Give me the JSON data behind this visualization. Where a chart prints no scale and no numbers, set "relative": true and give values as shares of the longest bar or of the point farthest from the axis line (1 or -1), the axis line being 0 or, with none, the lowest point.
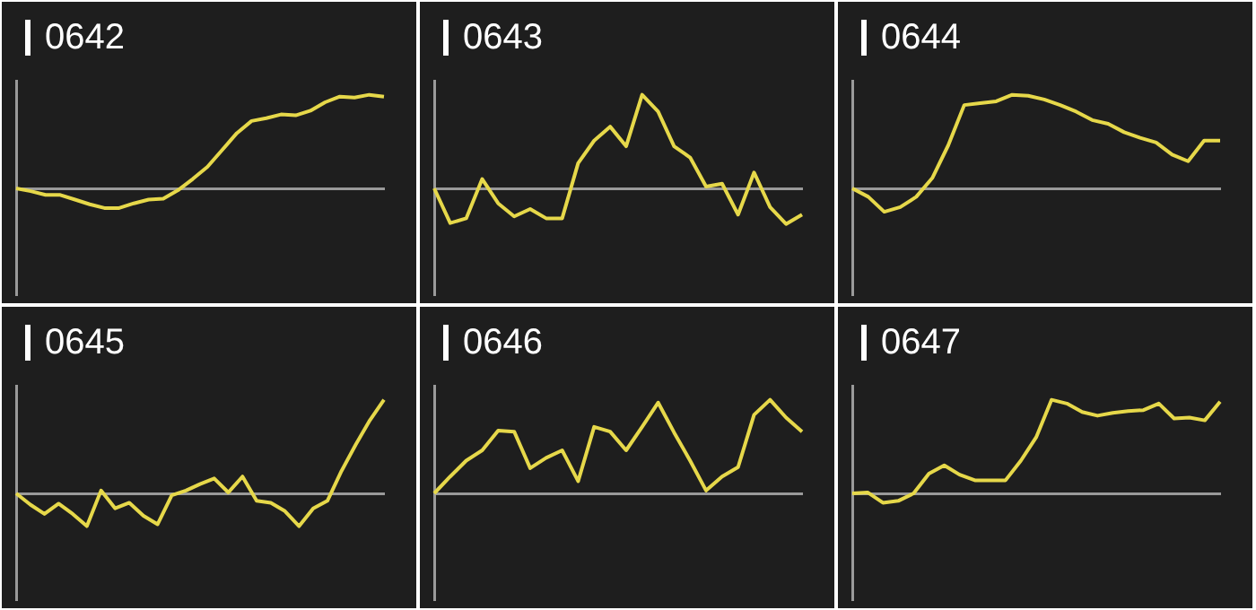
{
  "chart_data": [
    {
      "type": "line",
      "title": "0642",
      "relative": true,
      "categories": [
        null,
        null,
        null,
        null,
        null,
        null,
        null,
        null,
        null,
        null,
        null,
        null,
        null,
        null,
        null,
        null,
        null,
        null,
        null,
        null,
        null,
        null,
        null,
        null,
        null,
        null
      ],
      "series": [
        {
          "color": "#e6d84a",
          "values": [
            0,
            -0.03,
            -0.07,
            -0.07,
            -0.12,
            -0.17,
            -0.21,
            -0.21,
            -0.16,
            -0.12,
            -0.11,
            -0.02,
            0.1,
            0.23,
            0.41,
            0.59,
            0.72,
            0.75,
            0.79,
            0.78,
            0.83,
            0.92,
            0.98,
            0.97,
            1,
            0.98
          ]
        }
      ]
    },
    {
      "type": "line",
      "title": "0643",
      "relative": true,
      "categories": [
        null,
        null,
        null,
        null,
        null,
        null,
        null,
        null,
        null,
        null,
        null,
        null,
        null,
        null,
        null,
        null,
        null,
        null,
        null,
        null,
        null,
        null,
        null,
        null
      ],
      "series": [
        {
          "color": "#e6d84a",
          "values": [
            0,
            -0.37,
            -0.32,
            0.1,
            -0.16,
            -0.3,
            -0.22,
            -0.32,
            -0.32,
            0.27,
            0.51,
            0.66,
            0.45,
            1,
            0.82,
            0.45,
            0.33,
            0.02,
            0.05,
            -0.28,
            0.17,
            -0.2,
            -0.38,
            -0.28
          ]
        }
      ]
    },
    {
      "type": "line",
      "title": "0644",
      "relative": true,
      "categories": [
        null,
        null,
        null,
        null,
        null,
        null,
        null,
        null,
        null,
        null,
        null,
        null,
        null,
        null,
        null,
        null,
        null,
        null,
        null,
        null,
        null,
        null,
        null,
        null
      ],
      "series": [
        {
          "color": "#e6d84a",
          "values": [
            0,
            -0.09,
            -0.25,
            -0.2,
            -0.09,
            0.11,
            0.46,
            0.89,
            0.91,
            0.93,
            1,
            0.99,
            0.95,
            0.89,
            0.82,
            0.73,
            0.69,
            0.6,
            0.54,
            0.49,
            0.36,
            0.29,
            0.51,
            0.51
          ]
        }
      ]
    },
    {
      "type": "line",
      "title": "0645",
      "relative": true,
      "categories": [
        null,
        null,
        null,
        null,
        null,
        null,
        null,
        null,
        null,
        null,
        null,
        null,
        null,
        null,
        null,
        null,
        null,
        null,
        null,
        null,
        null,
        null,
        null,
        null,
        null,
        null,
        null
      ],
      "series": [
        {
          "color": "#e6d84a",
          "values": [
            0,
            -0.12,
            -0.22,
            -0.11,
            -0.22,
            -0.35,
            0.03,
            -0.16,
            -0.1,
            -0.24,
            -0.33,
            -0.02,
            0.03,
            0.1,
            0.16,
            0.01,
            0.18,
            -0.08,
            -0.1,
            -0.19,
            -0.35,
            -0.16,
            -0.08,
            0.24,
            0.52,
            0.78,
            1
          ]
        }
      ]
    },
    {
      "type": "line",
      "title": "0646",
      "relative": true,
      "categories": [
        null,
        null,
        null,
        null,
        null,
        null,
        null,
        null,
        null,
        null,
        null,
        null,
        null,
        null,
        null,
        null,
        null,
        null,
        null,
        null,
        null,
        null,
        null,
        null
      ],
      "series": [
        {
          "color": "#e6d84a",
          "values": [
            0,
            0.18,
            0.35,
            0.46,
            0.67,
            0.66,
            0.27,
            0.38,
            0.46,
            0.13,
            0.71,
            0.66,
            0.46,
            0.71,
            0.97,
            0.65,
            0.35,
            0.03,
            0.18,
            0.28,
            0.84,
            1,
            0.81,
            0.66
          ]
        }
      ]
    },
    {
      "type": "line",
      "title": "0647",
      "relative": true,
      "categories": [
        null,
        null,
        null,
        null,
        null,
        null,
        null,
        null,
        null,
        null,
        null,
        null,
        null,
        null,
        null,
        null,
        null,
        null,
        null,
        null,
        null,
        null,
        null,
        null,
        null
      ],
      "series": [
        {
          "color": "#e6d84a",
          "values": [
            0,
            0.01,
            -0.1,
            -0.08,
            0,
            0.21,
            0.3,
            0.2,
            0.14,
            0.14,
            0.14,
            0.35,
            0.6,
            1,
            0.96,
            0.87,
            0.83,
            0.86,
            0.88,
            0.89,
            0.96,
            0.8,
            0.81,
            0.78,
            0.98
          ]
        }
      ]
    }
  ]
}
